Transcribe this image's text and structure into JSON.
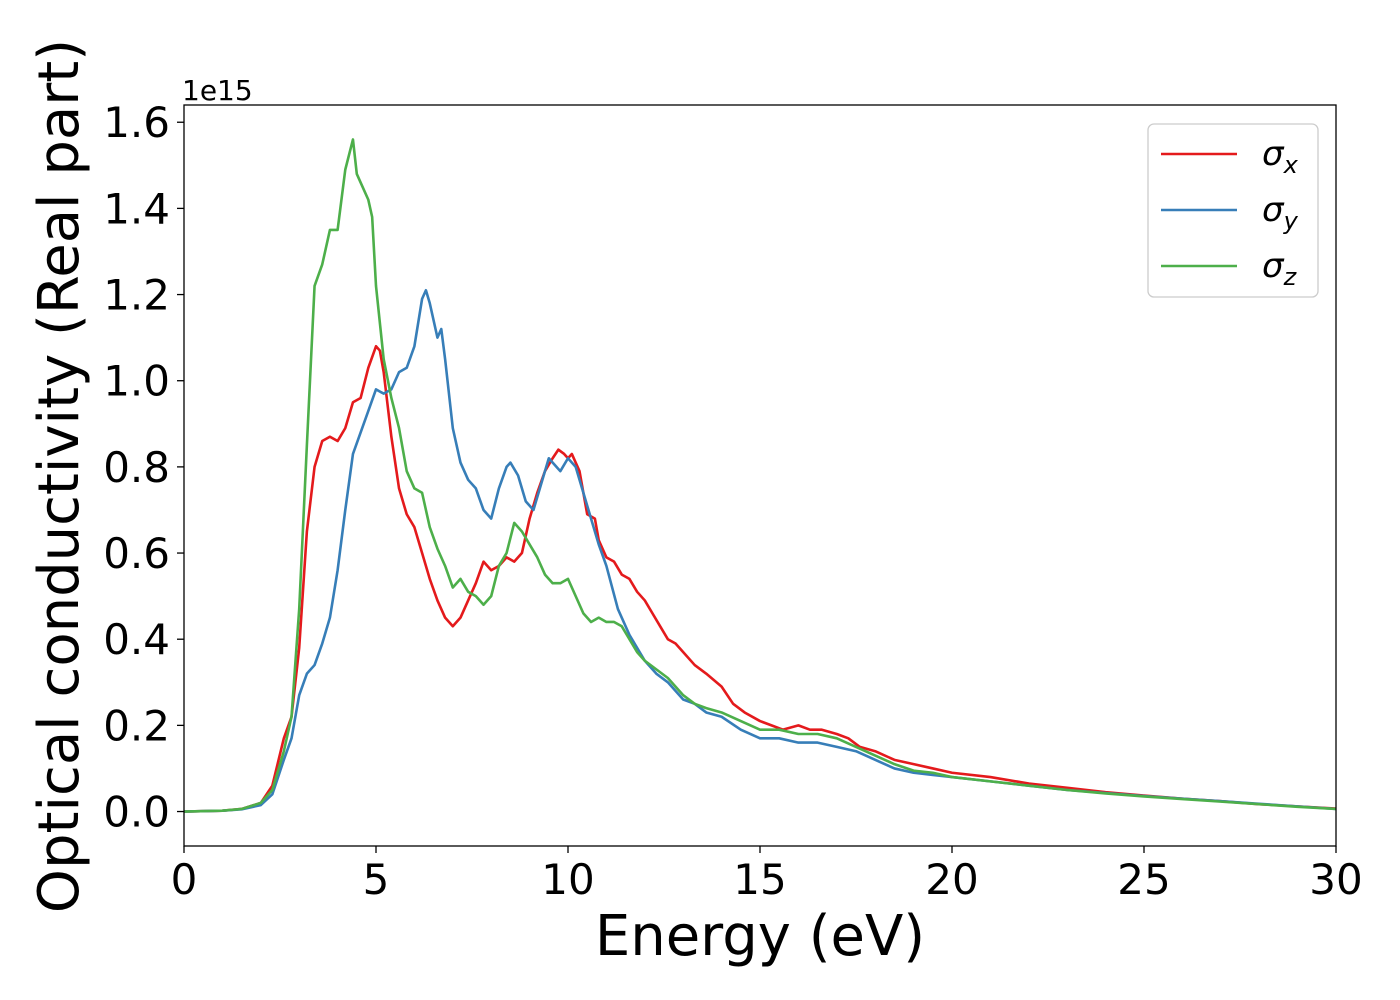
{
  "chart_data": {
    "type": "line",
    "xlabel": "Energy (eV)",
    "ylabel": "Optical conductivity (Real part)",
    "y_offset_label": "1e15",
    "xlim": [
      0,
      30
    ],
    "ylim": [
      -0.08,
      1.64
    ],
    "grid": false,
    "legend_position": "top-right",
    "x_ticks": [
      0,
      5,
      10,
      15,
      20,
      25,
      30
    ],
    "x_tick_labels": [
      "0",
      "5",
      "10",
      "15",
      "20",
      "25",
      "30"
    ],
    "y_ticks": [
      0.0,
      0.2,
      0.4,
      0.6,
      0.8,
      1.0,
      1.2,
      1.4,
      1.6
    ],
    "y_tick_labels": [
      "0.0",
      "0.2",
      "0.4",
      "0.6",
      "0.8",
      "1.0",
      "1.2",
      "1.4",
      "1.6"
    ],
    "series": [
      {
        "name": "σx",
        "symbol": "σ",
        "subscript": "x",
        "color": "#e41a1c",
        "points": [
          [
            0,
            0
          ],
          [
            1,
            0.002
          ],
          [
            1.5,
            0.006
          ],
          [
            2,
            0.02
          ],
          [
            2.3,
            0.06
          ],
          [
            2.6,
            0.17
          ],
          [
            2.8,
            0.22
          ],
          [
            3.0,
            0.38
          ],
          [
            3.2,
            0.65
          ],
          [
            3.4,
            0.8
          ],
          [
            3.6,
            0.86
          ],
          [
            3.8,
            0.87
          ],
          [
            4.0,
            0.86
          ],
          [
            4.2,
            0.89
          ],
          [
            4.4,
            0.95
          ],
          [
            4.6,
            0.96
          ],
          [
            4.8,
            1.03
          ],
          [
            5.0,
            1.08
          ],
          [
            5.1,
            1.07
          ],
          [
            5.2,
            1.02
          ],
          [
            5.4,
            0.87
          ],
          [
            5.6,
            0.75
          ],
          [
            5.8,
            0.69
          ],
          [
            6.0,
            0.66
          ],
          [
            6.2,
            0.6
          ],
          [
            6.4,
            0.54
          ],
          [
            6.6,
            0.49
          ],
          [
            6.8,
            0.45
          ],
          [
            7.0,
            0.43
          ],
          [
            7.2,
            0.45
          ],
          [
            7.4,
            0.49
          ],
          [
            7.6,
            0.53
          ],
          [
            7.8,
            0.58
          ],
          [
            8.0,
            0.56
          ],
          [
            8.2,
            0.57
          ],
          [
            8.4,
            0.59
          ],
          [
            8.6,
            0.58
          ],
          [
            8.8,
            0.6
          ],
          [
            9.0,
            0.68
          ],
          [
            9.2,
            0.74
          ],
          [
            9.4,
            0.79
          ],
          [
            9.6,
            0.82
          ],
          [
            9.75,
            0.84
          ],
          [
            9.9,
            0.83
          ],
          [
            10.0,
            0.82
          ],
          [
            10.1,
            0.83
          ],
          [
            10.3,
            0.79
          ],
          [
            10.5,
            0.69
          ],
          [
            10.7,
            0.68
          ],
          [
            10.8,
            0.63
          ],
          [
            11.0,
            0.59
          ],
          [
            11.2,
            0.58
          ],
          [
            11.4,
            0.55
          ],
          [
            11.6,
            0.54
          ],
          [
            11.8,
            0.51
          ],
          [
            12.0,
            0.49
          ],
          [
            12.2,
            0.46
          ],
          [
            12.4,
            0.43
          ],
          [
            12.6,
            0.4
          ],
          [
            12.8,
            0.39
          ],
          [
            13.0,
            0.37
          ],
          [
            13.3,
            0.34
          ],
          [
            13.6,
            0.32
          ],
          [
            14.0,
            0.29
          ],
          [
            14.3,
            0.25
          ],
          [
            14.6,
            0.23
          ],
          [
            15.0,
            0.21
          ],
          [
            15.3,
            0.2
          ],
          [
            15.6,
            0.19
          ],
          [
            16.0,
            0.2
          ],
          [
            16.3,
            0.19
          ],
          [
            16.6,
            0.19
          ],
          [
            17.0,
            0.18
          ],
          [
            17.3,
            0.17
          ],
          [
            17.6,
            0.15
          ],
          [
            18.0,
            0.14
          ],
          [
            18.5,
            0.12
          ],
          [
            19.0,
            0.11
          ],
          [
            19.5,
            0.1
          ],
          [
            20.0,
            0.09
          ],
          [
            21.0,
            0.08
          ],
          [
            22.0,
            0.065
          ],
          [
            23.0,
            0.055
          ],
          [
            24.0,
            0.045
          ],
          [
            25.0,
            0.037
          ],
          [
            26.0,
            0.03
          ],
          [
            27.0,
            0.024
          ],
          [
            28.0,
            0.017
          ],
          [
            29.0,
            0.012
          ],
          [
            30.0,
            0.007
          ]
        ]
      },
      {
        "name": "σy",
        "symbol": "σ",
        "subscript": "y",
        "color": "#377eb8",
        "points": [
          [
            0,
            0
          ],
          [
            1,
            0.002
          ],
          [
            1.5,
            0.005
          ],
          [
            2,
            0.015
          ],
          [
            2.3,
            0.04
          ],
          [
            2.6,
            0.12
          ],
          [
            2.8,
            0.17
          ],
          [
            3.0,
            0.27
          ],
          [
            3.2,
            0.32
          ],
          [
            3.4,
            0.34
          ],
          [
            3.6,
            0.39
          ],
          [
            3.8,
            0.45
          ],
          [
            4.0,
            0.56
          ],
          [
            4.2,
            0.7
          ],
          [
            4.4,
            0.83
          ],
          [
            4.6,
            0.88
          ],
          [
            4.8,
            0.93
          ],
          [
            5.0,
            0.98
          ],
          [
            5.2,
            0.97
          ],
          [
            5.4,
            0.98
          ],
          [
            5.6,
            1.02
          ],
          [
            5.8,
            1.03
          ],
          [
            6.0,
            1.08
          ],
          [
            6.2,
            1.19
          ],
          [
            6.3,
            1.21
          ],
          [
            6.4,
            1.18
          ],
          [
            6.6,
            1.1
          ],
          [
            6.7,
            1.12
          ],
          [
            6.8,
            1.05
          ],
          [
            7.0,
            0.89
          ],
          [
            7.2,
            0.81
          ],
          [
            7.4,
            0.77
          ],
          [
            7.6,
            0.75
          ],
          [
            7.8,
            0.7
          ],
          [
            8.0,
            0.68
          ],
          [
            8.2,
            0.75
          ],
          [
            8.4,
            0.8
          ],
          [
            8.5,
            0.81
          ],
          [
            8.7,
            0.78
          ],
          [
            8.9,
            0.72
          ],
          [
            9.1,
            0.7
          ],
          [
            9.3,
            0.76
          ],
          [
            9.5,
            0.82
          ],
          [
            9.7,
            0.8
          ],
          [
            9.8,
            0.79
          ],
          [
            10.0,
            0.82
          ],
          [
            10.2,
            0.8
          ],
          [
            10.4,
            0.74
          ],
          [
            10.6,
            0.68
          ],
          [
            10.8,
            0.62
          ],
          [
            11.0,
            0.57
          ],
          [
            11.3,
            0.47
          ],
          [
            11.6,
            0.41
          ],
          [
            12.0,
            0.35
          ],
          [
            12.3,
            0.32
          ],
          [
            12.6,
            0.3
          ],
          [
            13.0,
            0.26
          ],
          [
            13.3,
            0.25
          ],
          [
            13.6,
            0.23
          ],
          [
            14.0,
            0.22
          ],
          [
            14.5,
            0.19
          ],
          [
            15.0,
            0.17
          ],
          [
            15.5,
            0.17
          ],
          [
            16.0,
            0.16
          ],
          [
            16.5,
            0.16
          ],
          [
            17.0,
            0.15
          ],
          [
            17.5,
            0.14
          ],
          [
            18.0,
            0.12
          ],
          [
            18.5,
            0.1
          ],
          [
            19.0,
            0.09
          ],
          [
            19.5,
            0.085
          ],
          [
            20.0,
            0.08
          ],
          [
            21.0,
            0.07
          ],
          [
            22.0,
            0.06
          ],
          [
            23.0,
            0.05
          ],
          [
            24.0,
            0.043
          ],
          [
            25.0,
            0.036
          ],
          [
            26.0,
            0.03
          ],
          [
            27.0,
            0.024
          ],
          [
            28.0,
            0.018
          ],
          [
            29.0,
            0.012
          ],
          [
            30.0,
            0.006
          ]
        ]
      },
      {
        "name": "σz",
        "symbol": "σ",
        "subscript": "z",
        "color": "#4daf4a",
        "points": [
          [
            0,
            0
          ],
          [
            1,
            0.002
          ],
          [
            1.5,
            0.006
          ],
          [
            2,
            0.02
          ],
          [
            2.3,
            0.05
          ],
          [
            2.6,
            0.14
          ],
          [
            2.8,
            0.22
          ],
          [
            3.0,
            0.47
          ],
          [
            3.2,
            0.85
          ],
          [
            3.4,
            1.22
          ],
          [
            3.6,
            1.27
          ],
          [
            3.8,
            1.35
          ],
          [
            4.0,
            1.35
          ],
          [
            4.2,
            1.49
          ],
          [
            4.4,
            1.56
          ],
          [
            4.5,
            1.48
          ],
          [
            4.6,
            1.46
          ],
          [
            4.8,
            1.42
          ],
          [
            4.9,
            1.38
          ],
          [
            5.0,
            1.22
          ],
          [
            5.2,
            1.05
          ],
          [
            5.4,
            0.96
          ],
          [
            5.6,
            0.89
          ],
          [
            5.8,
            0.79
          ],
          [
            6.0,
            0.75
          ],
          [
            6.2,
            0.74
          ],
          [
            6.4,
            0.66
          ],
          [
            6.6,
            0.61
          ],
          [
            6.8,
            0.57
          ],
          [
            7.0,
            0.52
          ],
          [
            7.2,
            0.54
          ],
          [
            7.4,
            0.51
          ],
          [
            7.6,
            0.5
          ],
          [
            7.8,
            0.48
          ],
          [
            8.0,
            0.5
          ],
          [
            8.2,
            0.57
          ],
          [
            8.4,
            0.6
          ],
          [
            8.6,
            0.67
          ],
          [
            8.8,
            0.65
          ],
          [
            9.0,
            0.62
          ],
          [
            9.2,
            0.59
          ],
          [
            9.4,
            0.55
          ],
          [
            9.6,
            0.53
          ],
          [
            9.8,
            0.53
          ],
          [
            10.0,
            0.54
          ],
          [
            10.2,
            0.5
          ],
          [
            10.4,
            0.46
          ],
          [
            10.6,
            0.44
          ],
          [
            10.8,
            0.45
          ],
          [
            11.0,
            0.44
          ],
          [
            11.2,
            0.44
          ],
          [
            11.4,
            0.43
          ],
          [
            11.6,
            0.4
          ],
          [
            11.8,
            0.37
          ],
          [
            12.0,
            0.35
          ],
          [
            12.3,
            0.33
          ],
          [
            12.6,
            0.31
          ],
          [
            13.0,
            0.27
          ],
          [
            13.3,
            0.25
          ],
          [
            13.6,
            0.24
          ],
          [
            14.0,
            0.23
          ],
          [
            14.5,
            0.21
          ],
          [
            15.0,
            0.19
          ],
          [
            15.5,
            0.19
          ],
          [
            16.0,
            0.18
          ],
          [
            16.5,
            0.18
          ],
          [
            17.0,
            0.17
          ],
          [
            17.5,
            0.15
          ],
          [
            18.0,
            0.13
          ],
          [
            18.5,
            0.11
          ],
          [
            19.0,
            0.095
          ],
          [
            19.5,
            0.09
          ],
          [
            20.0,
            0.08
          ],
          [
            21.0,
            0.07
          ],
          [
            22.0,
            0.06
          ],
          [
            23.0,
            0.05
          ],
          [
            24.0,
            0.042
          ],
          [
            25.0,
            0.035
          ],
          [
            26.0,
            0.029
          ],
          [
            27.0,
            0.023
          ],
          [
            28.0,
            0.017
          ],
          [
            29.0,
            0.011
          ],
          [
            30.0,
            0.006
          ]
        ]
      }
    ]
  }
}
